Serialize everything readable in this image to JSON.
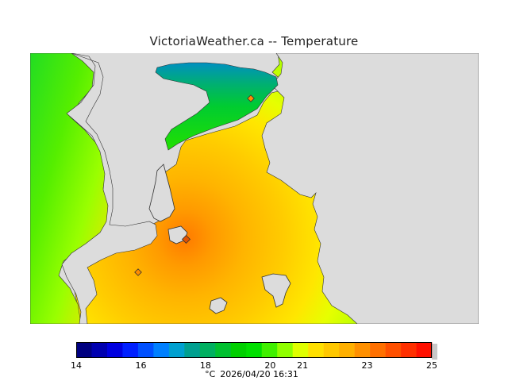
{
  "header": {
    "title": "VictoriaWeather.ca -- Temperature"
  },
  "legend": {
    "min": 14,
    "max": 25,
    "tick_labels": [
      "14",
      "16",
      "18",
      "20",
      "21",
      "23",
      "25"
    ],
    "tick_values": [
      14,
      16,
      18,
      20,
      21,
      23,
      25
    ],
    "colors": [
      "#000080",
      "#0000b0",
      "#0000e0",
      "#0020ff",
      "#0050ff",
      "#0080ff",
      "#00a0d0",
      "#00a090",
      "#00b060",
      "#00c030",
      "#00d000",
      "#00e000",
      "#40f000",
      "#90ff00",
      "#e0ff00",
      "#ffe000",
      "#ffc800",
      "#ffb000",
      "#ff9000",
      "#ff7000",
      "#ff5000",
      "#ff3000",
      "#ff1000"
    ]
  },
  "footer": {
    "unit": "°C",
    "timestamp": "2026/04/20 16:31"
  },
  "map": {
    "land_color": "#dcdcdc",
    "outline_color": "#000000",
    "station_count": 3
  }
}
